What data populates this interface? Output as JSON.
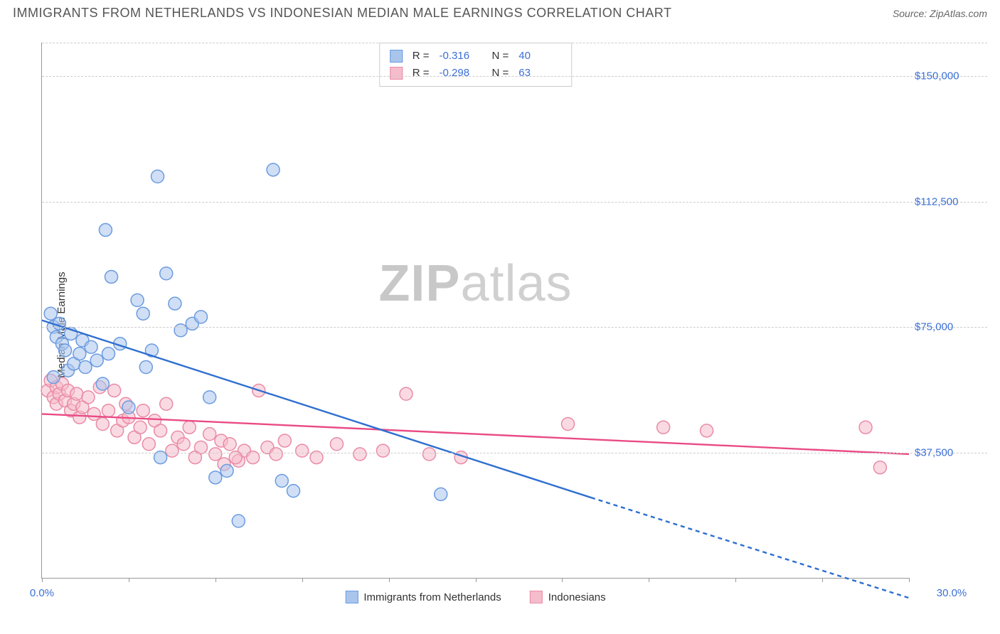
{
  "header": {
    "title": "IMMIGRANTS FROM NETHERLANDS VS INDONESIAN MEDIAN MALE EARNINGS CORRELATION CHART",
    "source_label": "Source:",
    "source_value": "ZipAtlas.com"
  },
  "chart": {
    "type": "scatter",
    "ylabel": "Median Male Earnings",
    "watermark_part1": "ZIP",
    "watermark_part2": "atlas",
    "background_color": "#ffffff",
    "grid_color": "#cccccc",
    "axis_color": "#999999",
    "tick_label_color": "#3b6fd6",
    "xlim": [
      0,
      30
    ],
    "ylim": [
      0,
      160000
    ],
    "y_gridlines": [
      37500,
      75000,
      112500,
      150000,
      160000
    ],
    "y_tick_labels": {
      "37500": "$37,500",
      "75000": "$75,000",
      "112500": "$112,500",
      "150000": "$150,000"
    },
    "x_ticks_minor_step": 3,
    "x_tick_labels": {
      "0": "0.0%",
      "30": "30.0%"
    },
    "marker_radius": 9,
    "marker_stroke_width": 1.5,
    "line_width": 2.4
  },
  "series": {
    "a": {
      "label": "Immigrants from Netherlands",
      "fill_color": "#a9c5ec",
      "stroke_color": "#6b9be0",
      "fill_opacity": 0.55,
      "r_label": "R =",
      "r_value": "-0.316",
      "n_label": "N =",
      "n_value": "40",
      "regression": {
        "x1": 0,
        "y1": 77000,
        "x2_solid": 19,
        "y2_solid": 24000,
        "x2": 30,
        "y2": -6000
      },
      "points": [
        [
          0.3,
          79000
        ],
        [
          0.4,
          75000
        ],
        [
          0.4,
          60000
        ],
        [
          0.5,
          72000
        ],
        [
          0.6,
          76000
        ],
        [
          0.7,
          70000
        ],
        [
          0.8,
          68000
        ],
        [
          0.9,
          62000
        ],
        [
          1.0,
          73000
        ],
        [
          1.1,
          64000
        ],
        [
          1.3,
          67000
        ],
        [
          1.4,
          71000
        ],
        [
          1.5,
          63000
        ],
        [
          1.7,
          69000
        ],
        [
          1.9,
          65000
        ],
        [
          2.1,
          58000
        ],
        [
          2.2,
          104000
        ],
        [
          2.3,
          67000
        ],
        [
          2.4,
          90000
        ],
        [
          2.7,
          70000
        ],
        [
          3.0,
          51000
        ],
        [
          3.3,
          83000
        ],
        [
          3.5,
          79000
        ],
        [
          3.6,
          63000
        ],
        [
          3.8,
          68000
        ],
        [
          4.0,
          120000
        ],
        [
          4.3,
          91000
        ],
        [
          4.6,
          82000
        ],
        [
          4.8,
          74000
        ],
        [
          5.2,
          76000
        ],
        [
          5.5,
          78000
        ],
        [
          5.8,
          54000
        ],
        [
          6.0,
          30000
        ],
        [
          6.4,
          32000
        ],
        [
          6.8,
          17000
        ],
        [
          8.0,
          122000
        ],
        [
          8.3,
          29000
        ],
        [
          8.7,
          26000
        ],
        [
          13.8,
          25000
        ],
        [
          4.1,
          36000
        ]
      ]
    },
    "b": {
      "label": "Indonesians",
      "fill_color": "#f5bccb",
      "stroke_color": "#e98ba6",
      "fill_opacity": 0.55,
      "r_label": "R =",
      "r_value": "-0.298",
      "n_label": "N =",
      "n_value": "63",
      "regression": {
        "x1": 0,
        "y1": 49000,
        "x2_solid": 30,
        "y2_solid": 37000,
        "x2": 30,
        "y2": 37000
      },
      "points": [
        [
          0.2,
          56000
        ],
        [
          0.3,
          59000
        ],
        [
          0.4,
          54000
        ],
        [
          0.5,
          57000
        ],
        [
          0.5,
          52000
        ],
        [
          0.6,
          55000
        ],
        [
          0.7,
          58000
        ],
        [
          0.8,
          53000
        ],
        [
          0.9,
          56000
        ],
        [
          1.0,
          50000
        ],
        [
          1.1,
          52000
        ],
        [
          1.2,
          55000
        ],
        [
          1.3,
          48000
        ],
        [
          1.4,
          51000
        ],
        [
          1.6,
          54000
        ],
        [
          1.8,
          49000
        ],
        [
          2.0,
          57000
        ],
        [
          2.1,
          46000
        ],
        [
          2.3,
          50000
        ],
        [
          2.5,
          56000
        ],
        [
          2.6,
          44000
        ],
        [
          2.8,
          47000
        ],
        [
          2.9,
          52000
        ],
        [
          3.0,
          48000
        ],
        [
          3.2,
          42000
        ],
        [
          3.4,
          45000
        ],
        [
          3.5,
          50000
        ],
        [
          3.7,
          40000
        ],
        [
          3.9,
          47000
        ],
        [
          4.1,
          44000
        ],
        [
          4.3,
          52000
        ],
        [
          4.5,
          38000
        ],
        [
          4.7,
          42000
        ],
        [
          4.9,
          40000
        ],
        [
          5.1,
          45000
        ],
        [
          5.3,
          36000
        ],
        [
          5.5,
          39000
        ],
        [
          5.8,
          43000
        ],
        [
          6.0,
          37000
        ],
        [
          6.2,
          41000
        ],
        [
          6.5,
          40000
        ],
        [
          6.8,
          35000
        ],
        [
          7.0,
          38000
        ],
        [
          7.3,
          36000
        ],
        [
          7.5,
          56000
        ],
        [
          7.8,
          39000
        ],
        [
          8.1,
          37000
        ],
        [
          8.4,
          41000
        ],
        [
          9.0,
          38000
        ],
        [
          9.5,
          36000
        ],
        [
          10.2,
          40000
        ],
        [
          11.0,
          37000
        ],
        [
          11.8,
          38000
        ],
        [
          12.6,
          55000
        ],
        [
          13.4,
          37000
        ],
        [
          14.5,
          36000
        ],
        [
          18.2,
          46000
        ],
        [
          21.5,
          45000
        ],
        [
          23.0,
          44000
        ],
        [
          28.5,
          45000
        ],
        [
          29.0,
          33000
        ],
        [
          6.3,
          34000
        ],
        [
          6.7,
          36000
        ]
      ]
    }
  }
}
